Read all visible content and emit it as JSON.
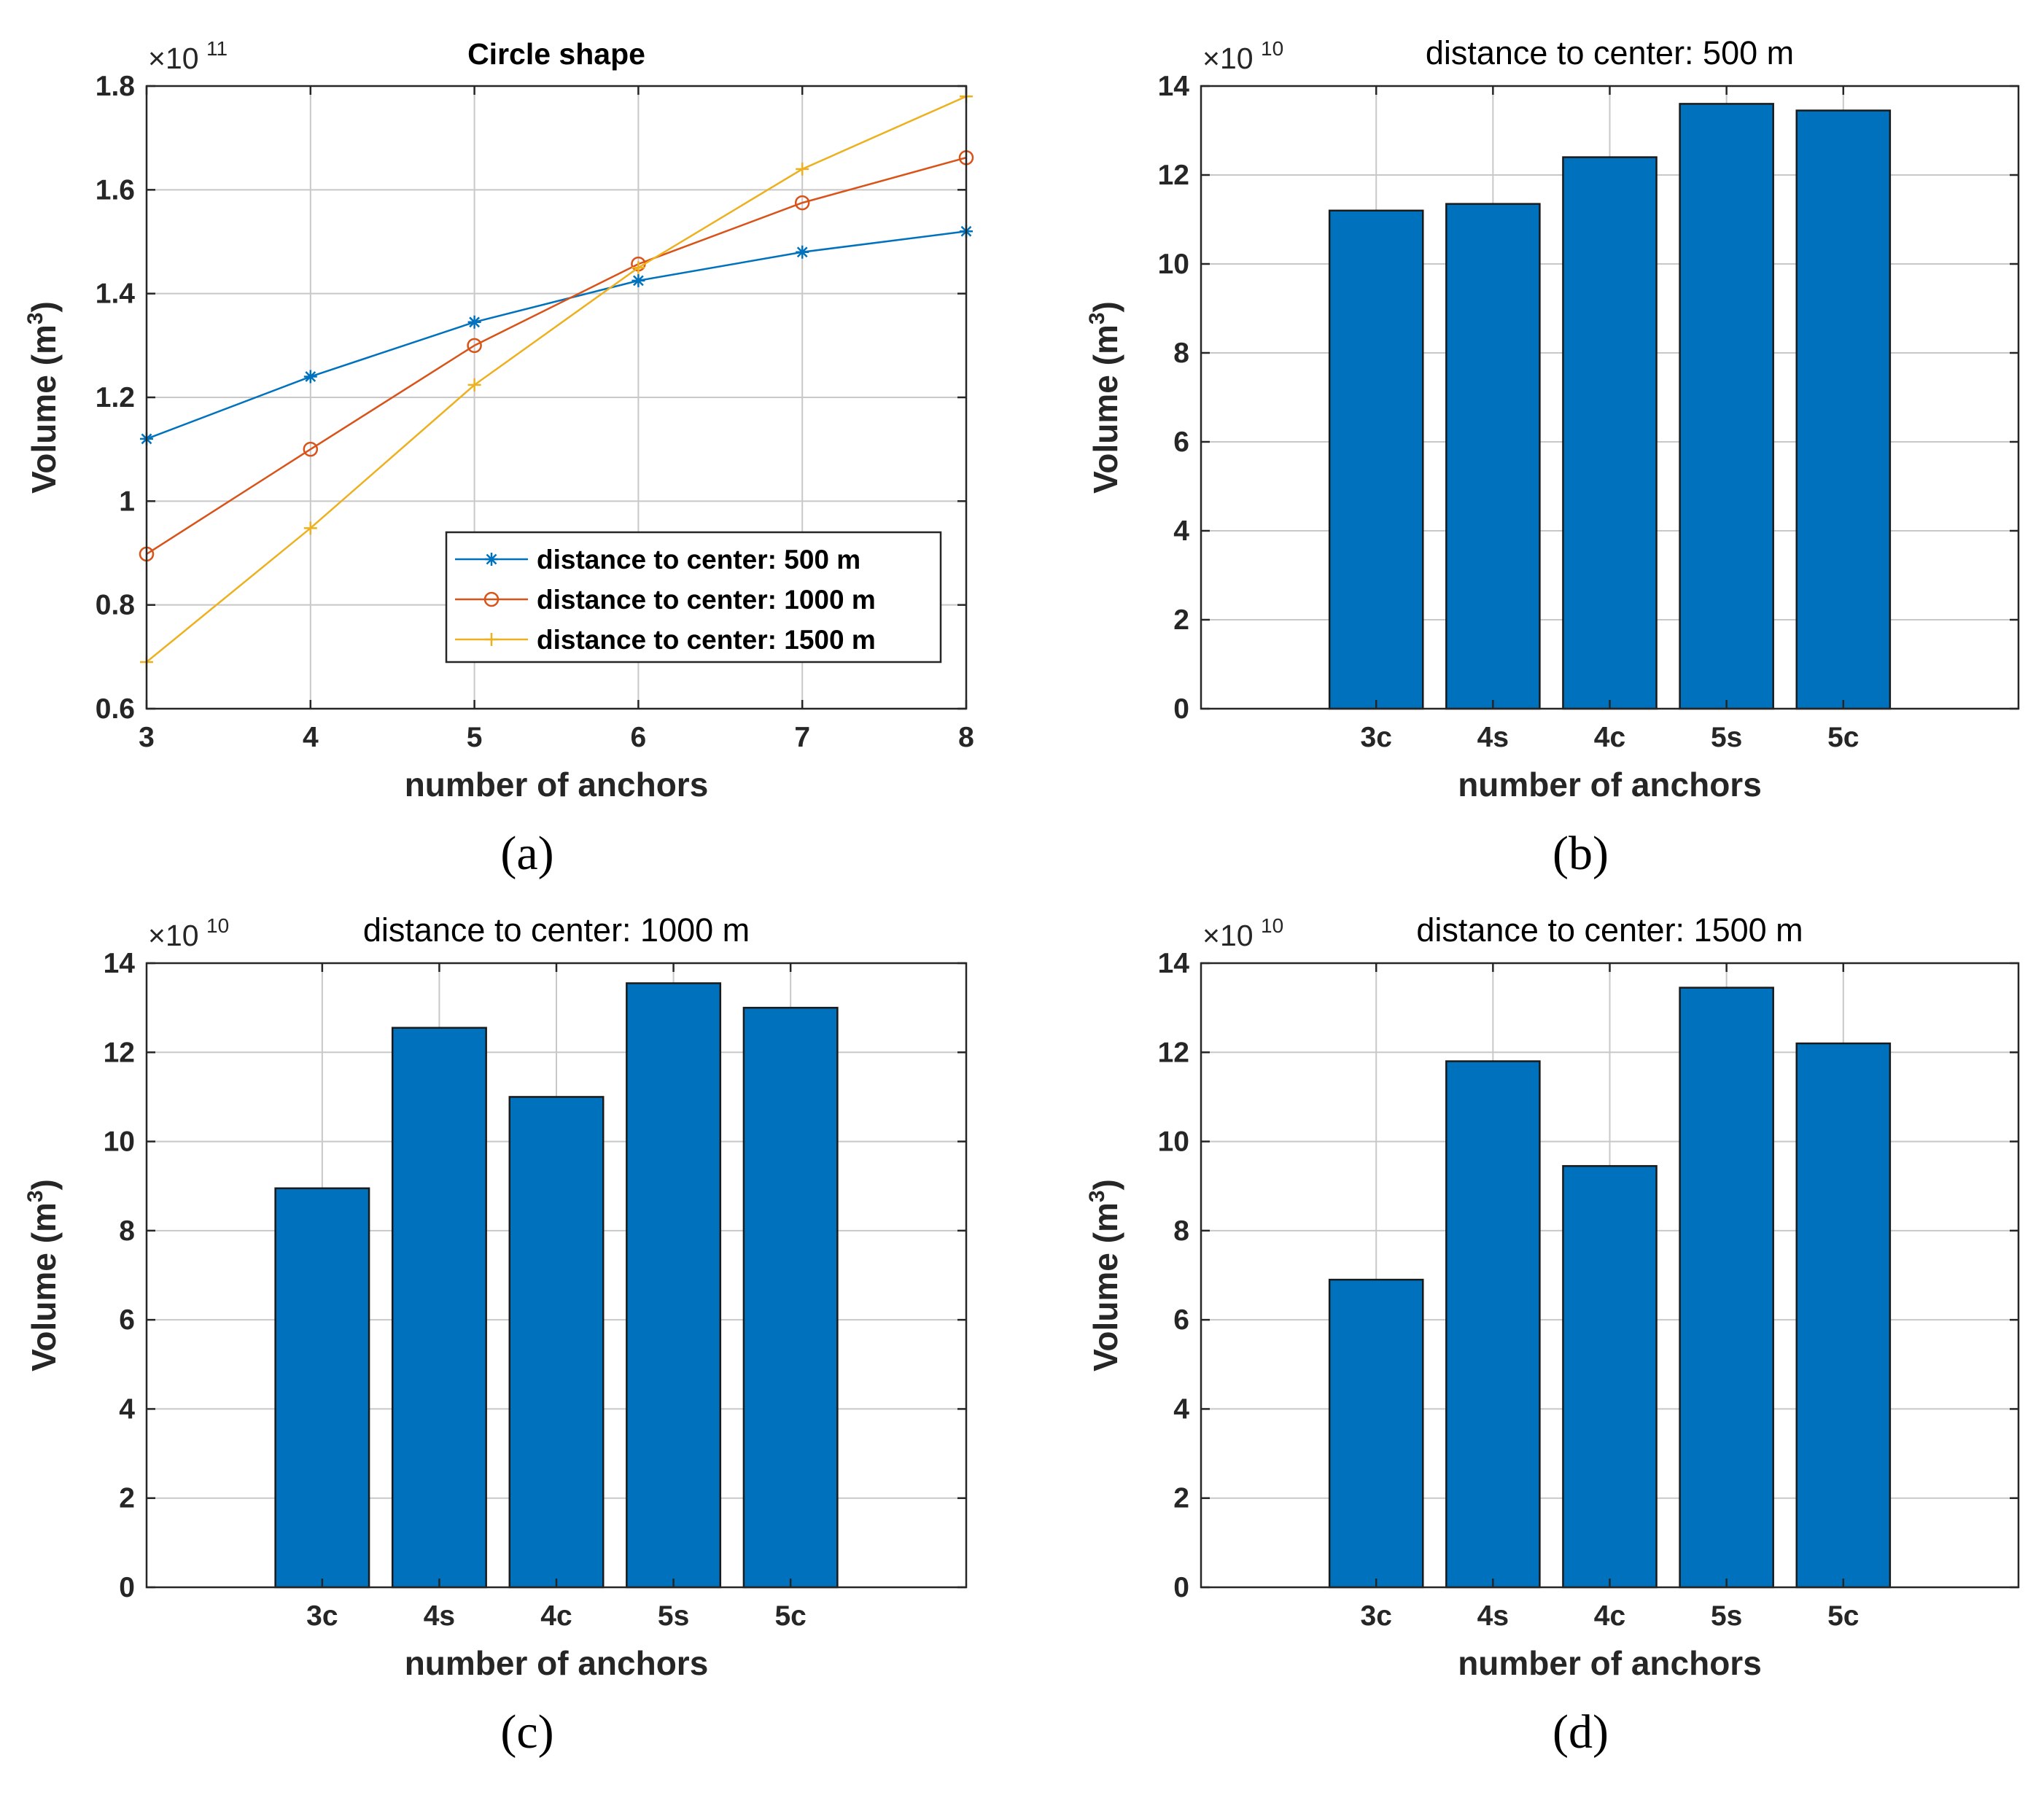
{
  "chart_data": [
    {
      "type": "line",
      "title": "Circle shape",
      "xlabel": "number of anchors",
      "ylabel": "Volume (m",
      "ylabel_sup": "3",
      "ylabel_close": ")",
      "multiplier_base": "×10",
      "multiplier_exp": "11",
      "panel_label": "(a)",
      "x": [
        3,
        4,
        5,
        6,
        7,
        8
      ],
      "xticks": [
        "3",
        "4",
        "5",
        "6",
        "7",
        "8"
      ],
      "xlim": [
        3,
        8
      ],
      "ylim": [
        0.6,
        1.8
      ],
      "yticks": [
        "0.6",
        "0.8",
        "1",
        "1.2",
        "1.4",
        "1.6",
        "1.8"
      ],
      "grid": true,
      "legend_position": "bottom-right",
      "series": [
        {
          "name": "distance to center: 500 m",
          "color": "#0072BD",
          "marker": "asterisk",
          "values": [
            1.12,
            1.24,
            1.345,
            1.425,
            1.48,
            1.52
          ]
        },
        {
          "name": "distance to center: 1000 m",
          "color": "#D95319",
          "marker": "circle",
          "values": [
            0.898,
            1.1,
            1.3,
            1.457,
            1.575,
            1.662
          ]
        },
        {
          "name": "distance to center: 1500 m",
          "color": "#EDB120",
          "marker": "plus",
          "values": [
            0.69,
            0.948,
            1.224,
            1.45,
            1.64,
            1.78
          ]
        }
      ]
    },
    {
      "type": "bar",
      "title": "distance to center: 500 m",
      "xlabel": "number of anchors",
      "ylabel": "Volume (m",
      "ylabel_sup": "3",
      "ylabel_close": ")",
      "multiplier_base": "×10",
      "multiplier_exp": "10",
      "panel_label": "(b)",
      "categories": [
        "3c",
        "4s",
        "4c",
        "5s",
        "5c"
      ],
      "values": [
        11.2,
        11.35,
        12.4,
        13.6,
        13.45
      ],
      "color": "#0072BD",
      "ylim": [
        0,
        14
      ],
      "yticks": [
        "0",
        "2",
        "4",
        "6",
        "8",
        "10",
        "12",
        "14"
      ],
      "grid": true
    },
    {
      "type": "bar",
      "title": "distance to center: 1000 m",
      "xlabel": "number of anchors",
      "ylabel": "Volume (m",
      "ylabel_sup": "3",
      "ylabel_close": ")",
      "multiplier_base": "×10",
      "multiplier_exp": "10",
      "panel_label": "(c)",
      "categories": [
        "3c",
        "4s",
        "4c",
        "5s",
        "5c"
      ],
      "values": [
        8.95,
        12.55,
        11.0,
        13.55,
        13.0
      ],
      "color": "#0072BD",
      "ylim": [
        0,
        14
      ],
      "yticks": [
        "0",
        "2",
        "4",
        "6",
        "8",
        "10",
        "12",
        "14"
      ],
      "grid": true
    },
    {
      "type": "bar",
      "title": "distance to center: 1500 m",
      "xlabel": "number of anchors",
      "ylabel": "Volume (m",
      "ylabel_sup": "3",
      "ylabel_close": ")",
      "multiplier_base": "×10",
      "multiplier_exp": "10",
      "panel_label": "(d)",
      "categories": [
        "3c",
        "4s",
        "4c",
        "5s",
        "5c"
      ],
      "values": [
        6.9,
        11.8,
        9.45,
        13.45,
        12.2
      ],
      "color": "#0072BD",
      "ylim": [
        0,
        14
      ],
      "yticks": [
        "0",
        "2",
        "4",
        "6",
        "8",
        "10",
        "12",
        "14"
      ],
      "grid": true
    }
  ]
}
